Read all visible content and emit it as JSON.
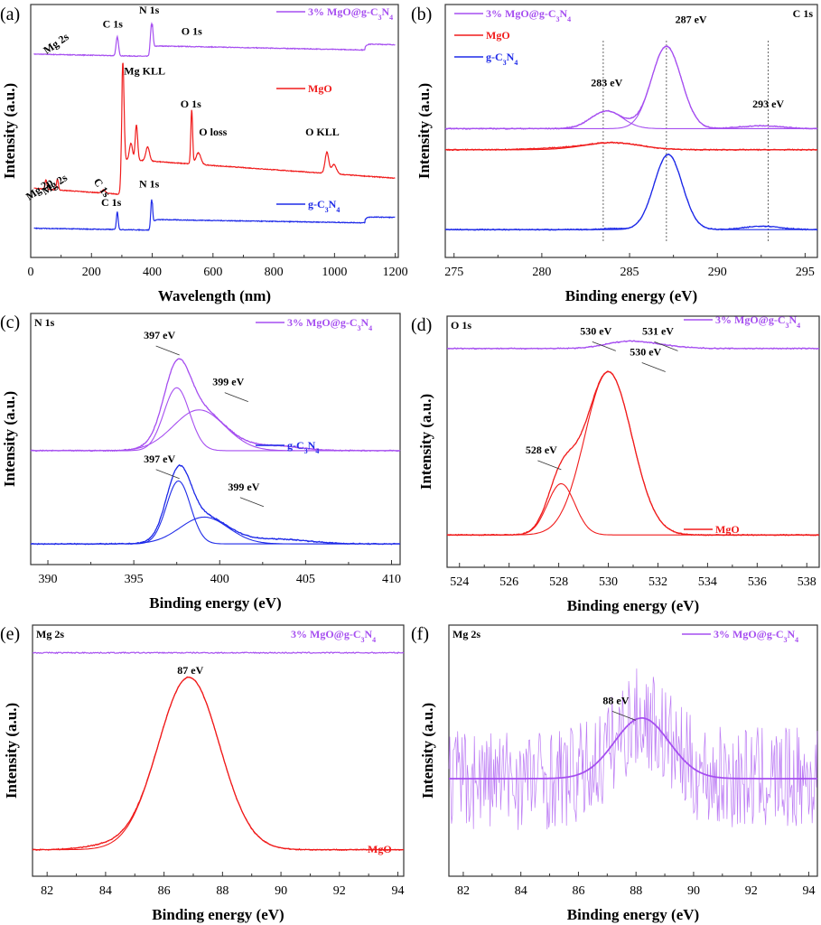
{
  "figure": {
    "colors": {
      "composite": "#a64ff0",
      "mgo": "#f01c1c",
      "gcn": "#1f2be8",
      "text": "#000000"
    }
  },
  "chart_data": [
    {
      "id": "a",
      "type": "line",
      "panel_label": "(a)",
      "title": "",
      "xlabel": "Wavelength (nm)",
      "ylabel": "Intensity (a.u.)",
      "xlim": [
        0,
        1210
      ],
      "ylim": [
        0,
        10
      ],
      "xticks": [
        0,
        200,
        400,
        600,
        800,
        1000,
        1200
      ],
      "tick_labels": [
        "0",
        "200",
        "400",
        "600",
        "800",
        "1000",
        "1200"
      ],
      "grid": false,
      "legend_position": "right",
      "series": [
        {
          "name": "3% MgO@g-C3N4",
          "legend": [
            "3% MgO@g-C",
            "3",
            "N",
            "4"
          ],
          "color": "#a64ff0",
          "baseline": 8.2,
          "peaks": [
            [
              285,
              0.8,
              4
            ],
            [
              398,
              1.4,
              4
            ]
          ],
          "steps": [
            [
              400,
              0.45
            ],
            [
              1100,
              0.25
            ]
          ],
          "slope": -0.00025
        },
        {
          "name": "MgO",
          "legend": [
            "MgO"
          ],
          "color": "#f01c1c",
          "baseline": 2.3,
          "peaks": [
            [
              50,
              0.4,
              3
            ],
            [
              88,
              0.45,
              3
            ],
            [
              240,
              0.15,
              5
            ],
            [
              303,
              4.6,
              4
            ],
            [
              330,
              0.7,
              5
            ],
            [
              348,
              1.5,
              4
            ],
            [
              385,
              0.6,
              6
            ],
            [
              530,
              2.3,
              3
            ],
            [
              552,
              0.5,
              8
            ],
            [
              975,
              0.9,
              6
            ],
            [
              998,
              0.4,
              8
            ]
          ],
          "steps": [
            [
              300,
              1.5
            ]
          ],
          "slope": -0.0009
        },
        {
          "name": "g-C3N4",
          "legend": [
            "g-C",
            "3",
            "N",
            "4"
          ],
          "color": "#1f2be8",
          "baseline": 0.8,
          "peaks": [
            [
              285,
              0.75,
              3
            ],
            [
              398,
              1.3,
              3
            ]
          ],
          "steps": [
            [
              400,
              0.45
            ],
            [
              1100,
              0.25
            ]
          ],
          "slope": -0.0002
        }
      ],
      "annotations": [
        {
          "text": "Mg 2s",
          "x": 90,
          "y": 8.6,
          "rotate": -35
        },
        {
          "text": "C 1s",
          "x": 270,
          "y": 9.4
        },
        {
          "text": "N 1s",
          "x": 390,
          "y": 10.0
        },
        {
          "text": "O 1s",
          "x": 530,
          "y": 9.1
        },
        {
          "text": "Mg KLL",
          "x": 375,
          "y": 7.4
        },
        {
          "text": "O 1s",
          "x": 527,
          "y": 6.0
        },
        {
          "text": "O loss",
          "x": 600,
          "y": 4.8
        },
        {
          "text": "O KLL",
          "x": 960,
          "y": 4.8
        },
        {
          "text": "Mg 2p",
          "x": 35,
          "y": 2.4,
          "rotate": -35
        },
        {
          "text": "Mg 2s",
          "x": 85,
          "y": 2.6,
          "rotate": -35
        },
        {
          "text": "C 1s",
          "x": 225,
          "y": 2.5,
          "rotate": 55
        },
        {
          "text": "C 1s",
          "x": 265,
          "y": 1.8
        },
        {
          "text": "N 1s",
          "x": 390,
          "y": 2.6
        }
      ]
    },
    {
      "id": "b",
      "type": "line",
      "panel_label": "(b)",
      "corner_label": "C 1s",
      "xlabel": "Binding energy (eV)",
      "ylabel": "Intensity (a.u.)",
      "xlim": [
        274.5,
        295.7
      ],
      "ylim": [
        0,
        10
      ],
      "xticks": [
        275,
        280,
        285,
        290,
        295
      ],
      "tick_labels": [
        "275",
        "280",
        "285",
        "290",
        "295"
      ],
      "grid": false,
      "legend_position": "top-left",
      "series": [
        {
          "name": "3% MgO@g-C3N4",
          "legend": [
            "3% MgO@g-C",
            "3",
            "N",
            "4"
          ],
          "color": "#a64ff0",
          "baseline": 5.1,
          "components": [
            [
              283.7,
              0.75,
              0.9
            ],
            [
              287.1,
              3.5,
              0.85
            ],
            [
              292.5,
              0.12,
              1.2
            ]
          ]
        },
        {
          "name": "MgO",
          "legend": [
            "MgO"
          ],
          "color": "#f01c1c",
          "baseline": 4.2,
          "components": [
            [
              284.0,
              0.3,
              1.6
            ],
            [
              280.5,
              0.05,
              1.5
            ]
          ]
        },
        {
          "name": "g-C3N4",
          "legend": [
            "g-C",
            "3",
            "N",
            "4"
          ],
          "color": "#1f2be8",
          "baseline": 0.8,
          "components": [
            [
              284.0,
              0.05,
              0.6
            ],
            [
              287.2,
              3.2,
              0.8
            ],
            [
              292.6,
              0.15,
              1.0
            ]
          ]
        }
      ],
      "reference_lines": [
        283.5,
        287.1,
        292.9
      ],
      "annotations": [
        {
          "text": "283 eV",
          "x": 283.7,
          "y": 6.9
        },
        {
          "text": "287 eV",
          "x": 288.5,
          "y": 9.6
        },
        {
          "text": "293 eV",
          "x": 292.9,
          "y": 6.0
        }
      ]
    },
    {
      "id": "c",
      "type": "line",
      "panel_label": "(c)",
      "corner_label": "N 1s",
      "xlabel": "Binding energy (eV)",
      "ylabel": "Intensity (a.u.)",
      "xlim": [
        389,
        410.5
      ],
      "ylim": [
        0,
        10
      ],
      "xticks": [
        390,
        395,
        400,
        405,
        410
      ],
      "tick_labels": [
        "390",
        "395",
        "400",
        "405",
        "410"
      ],
      "grid": false,
      "legend_position": "top-right",
      "series": [
        {
          "name": "3% MgO@g-C3N4",
          "legend": [
            "3% MgO@g-C",
            "3",
            "N",
            "4"
          ],
          "color": "#a64ff0",
          "baseline": 4.5,
          "components": [
            [
              397.5,
              2.7,
              0.75
            ],
            [
              398.8,
              1.75,
              1.5
            ],
            [
              403.2,
              0.2,
              1.5
            ]
          ]
        },
        {
          "name": "g-C3N4",
          "legend": [
            "g-C",
            "3",
            "N",
            "4"
          ],
          "color": "#1f2be8",
          "baseline": 0.5,
          "components": [
            [
              397.6,
              2.7,
              0.7
            ],
            [
              399.1,
              1.15,
              1.4
            ],
            [
              403.4,
              0.2,
              1.8
            ]
          ]
        }
      ],
      "annotations": [
        {
          "text": "397 eV",
          "x": 396.5,
          "y": 9.3,
          "arrow": true
        },
        {
          "text": "399 eV",
          "x": 400.5,
          "y": 7.3,
          "arrow": true
        },
        {
          "text": "397 eV",
          "x": 396.5,
          "y": 4.0,
          "arrow": true
        },
        {
          "text": "399 eV",
          "x": 401.4,
          "y": 2.8,
          "arrow": true
        }
      ]
    },
    {
      "id": "d",
      "type": "line",
      "panel_label": "(d)",
      "corner_label": "O 1s",
      "xlabel": "Binding energy (eV)",
      "ylabel": "Intensity (a.u.)",
      "xlim": [
        523.5,
        538.5
      ],
      "ylim": [
        0,
        10
      ],
      "xticks": [
        524,
        526,
        528,
        530,
        532,
        534,
        536,
        538
      ],
      "tick_labels": [
        "524",
        "526",
        "528",
        "530",
        "532",
        "534",
        "536",
        "538"
      ],
      "grid": false,
      "legend_position": "top-right",
      "series": [
        {
          "name": "3% MgO@g-C3N4",
          "legend": [
            "3% MgO@g-C",
            "3",
            "N",
            "4"
          ],
          "color": "#a64ff0",
          "baseline": 9.0,
          "components": [
            [
              530.6,
              0.15,
              0.8
            ],
            [
              531.4,
              0.2,
              1.1
            ]
          ]
        },
        {
          "name": "MgO",
          "legend": [
            "MgO"
          ],
          "color": "#f01c1c",
          "baseline": 1.0,
          "components": [
            [
              528.1,
              2.2,
              0.55
            ],
            [
              530.0,
              7.0,
              0.95
            ]
          ]
        }
      ],
      "annotations": [
        {
          "text": "530 eV",
          "x": 529.5,
          "y": 9.6,
          "arrow": true
        },
        {
          "text": "531 eV",
          "x": 532.0,
          "y": 9.6,
          "arrow": true
        },
        {
          "text": "530 eV",
          "x": 531.5,
          "y": 8.7,
          "arrow": true
        },
        {
          "text": "528 eV",
          "x": 527.3,
          "y": 4.5,
          "arrow": true
        }
      ]
    },
    {
      "id": "e",
      "type": "line",
      "panel_label": "(e)",
      "corner_label": "Mg 2s",
      "xlabel": "Binding energy (eV)",
      "ylabel": "Intensity (a.u.)",
      "xlim": [
        81.5,
        94.2
      ],
      "ylim": [
        0,
        10
      ],
      "xticks": [
        82,
        84,
        86,
        88,
        90,
        92,
        94
      ],
      "tick_labels": [
        "82",
        "84",
        "86",
        "88",
        "90",
        "92",
        "94"
      ],
      "grid": false,
      "legend_position": "top-right",
      "series": [
        {
          "name": "3% MgO@g-C3N4",
          "legend": [
            "3% MgO@g-C",
            "3",
            "N",
            "4"
          ],
          "color": "#a64ff0",
          "baseline": 9.2,
          "components": []
        },
        {
          "name": "MgO",
          "legend": [
            "MgO"
          ],
          "color": "#f01c1c",
          "baseline": 0.75,
          "components": [
            [
              86.85,
              7.4,
              1.05
            ],
            [
              84.0,
              0.15,
              0.8
            ]
          ]
        }
      ],
      "annotations": [
        {
          "text": "87 eV",
          "x": 86.9,
          "y": 8.3
        }
      ]
    },
    {
      "id": "f",
      "type": "line",
      "panel_label": "(f)",
      "corner_label": "Mg 2s",
      "xlabel": "Binding energy (eV)",
      "ylabel": "Intensity (a.u.)",
      "xlim": [
        81.5,
        94.3
      ],
      "ylim": [
        0,
        10
      ],
      "xticks": [
        82,
        84,
        86,
        88,
        90,
        92,
        94
      ],
      "tick_labels": [
        "82",
        "84",
        "86",
        "88",
        "90",
        "92",
        "94"
      ],
      "grid": false,
      "legend_position": "top-right",
      "series": [
        {
          "name": "3% MgO@g-C3N4",
          "legend": [
            "3% MgO@g-C",
            "3",
            "N",
            "4"
          ],
          "color": "#a64ff0",
          "baseline": 3.8,
          "components": [
            [
              88.2,
              2.6,
              0.95
            ]
          ],
          "noise": 2.2
        }
      ],
      "annotations": [
        {
          "text": "88 eV",
          "x": 87.3,
          "y": 7.0,
          "arrow": true
        }
      ]
    }
  ]
}
